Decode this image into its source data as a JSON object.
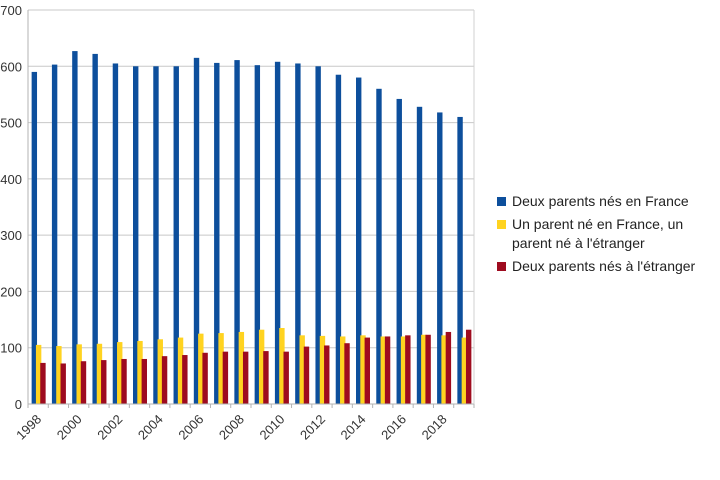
{
  "chart_data": {
    "type": "bar",
    "title": "",
    "xlabel": "",
    "ylabel": "",
    "ylim": [
      0,
      700
    ],
    "y_ticks": [
      0,
      100,
      200,
      300,
      400,
      500,
      600,
      700
    ],
    "y_tick_labels": [
      "0",
      "100",
      "200",
      "300",
      "400",
      "500",
      "600",
      "700"
    ],
    "categories": [
      "1998",
      "1999",
      "2000",
      "2001",
      "2002",
      "2003",
      "2004",
      "2005",
      "2006",
      "2007",
      "2008",
      "2009",
      "2010",
      "2011",
      "2012",
      "2013",
      "2014",
      "2015",
      "2016",
      "2017",
      "2018",
      "2019"
    ],
    "x_tick_labels": [
      "1998",
      "2000",
      "2002",
      "2004",
      "2006",
      "2008",
      "2010",
      "2012",
      "2014",
      "2016",
      "2018"
    ],
    "grid": true,
    "legend_position": "right",
    "series": [
      {
        "name": "Deux parents nés en France",
        "color": "#0d4f9c",
        "values": [
          590,
          603,
          627,
          622,
          605,
          600,
          600,
          600,
          615,
          606,
          611,
          602,
          608,
          605,
          600,
          585,
          580,
          560,
          542,
          528,
          518,
          510
        ]
      },
      {
        "name": "Un parent né en France, un parent né à l'étranger",
        "color": "#ffd320",
        "values": [
          105,
          103,
          106,
          107,
          110,
          112,
          115,
          118,
          125,
          126,
          128,
          132,
          135,
          122,
          121,
          120,
          122,
          120,
          120,
          123,
          122,
          118
        ]
      },
      {
        "name": "Deux parents nés à l'étranger",
        "color": "#9e0b1f",
        "values": [
          73,
          72,
          76,
          78,
          80,
          80,
          85,
          87,
          91,
          93,
          93,
          94,
          93,
          102,
          104,
          108,
          118,
          120,
          122,
          123,
          128,
          132
        ]
      }
    ]
  },
  "legend": {
    "items": [
      {
        "text": "Deux parents nés en France",
        "color": "#0d4f9c"
      },
      {
        "text": "Un parent né en France, un parent né à l'étranger",
        "color": "#ffd320"
      },
      {
        "text": "Deux parents nés à l'étranger",
        "color": "#9e0b1f"
      }
    ]
  }
}
